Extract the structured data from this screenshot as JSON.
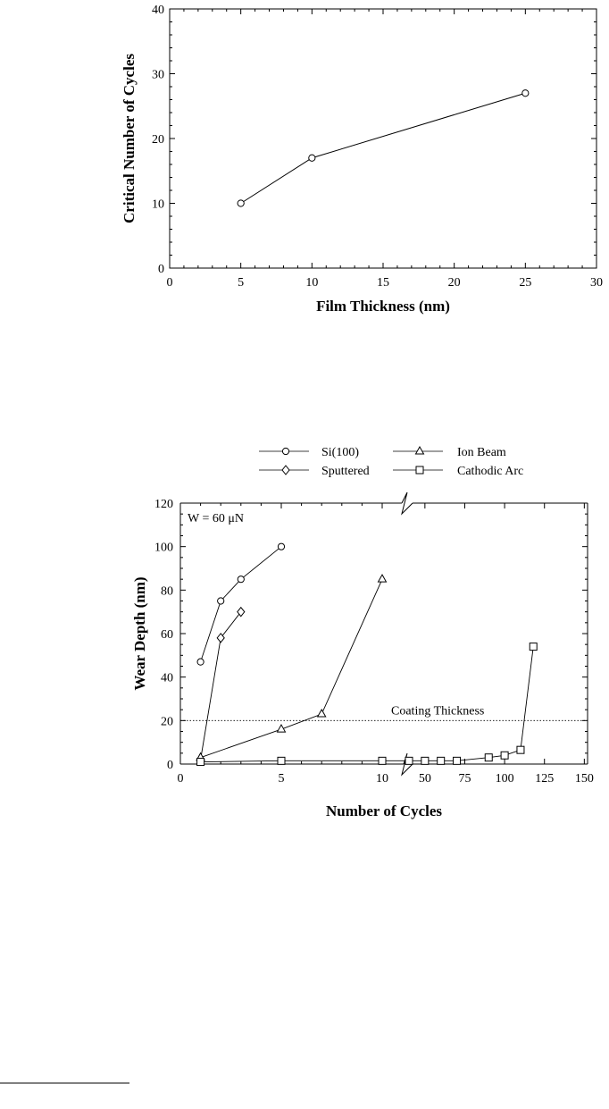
{
  "chart_data": [
    {
      "type": "line",
      "title": "",
      "xlabel": "Film Thickness (nm)",
      "ylabel": "Critical Number of Cycles",
      "xlim": [
        0,
        30
      ],
      "ylim": [
        0,
        40
      ],
      "x_ticks": [
        "0",
        "5",
        "10",
        "15",
        "20",
        "25",
        "30"
      ],
      "y_ticks": [
        "0",
        "10",
        "20",
        "30",
        "40"
      ],
      "grid": false,
      "series": [
        {
          "x": [
            5,
            10,
            25
          ],
          "y": [
            10,
            17,
            27
          ],
          "marker": "circle"
        }
      ]
    },
    {
      "type": "line",
      "title": "",
      "xlabel": "Number of Cycles",
      "ylabel": "Wear Depth (nm)",
      "ylim": [
        0,
        120
      ],
      "x_axis_broken": true,
      "x_ticks_left": [
        "0",
        "5",
        "10"
      ],
      "x_ticks_right": [
        "50",
        "75",
        "100",
        "125",
        "150"
      ],
      "y_ticks": [
        "0",
        "20",
        "40",
        "60",
        "80",
        "100",
        "120"
      ],
      "grid": false,
      "legend_placement": "top",
      "annotation": "W = 60 μN",
      "reference_line": {
        "label": "Coating Thickness",
        "y": 20,
        "style": "dotted"
      },
      "series": [
        {
          "name": "Si(100)",
          "marker": "circle",
          "x": [
            1,
            2,
            3,
            5
          ],
          "y": [
            47,
            75,
            85,
            100
          ]
        },
        {
          "name": "Sputtered",
          "marker": "diamond",
          "x": [
            1,
            2,
            3
          ],
          "y": [
            2,
            58,
            70
          ]
        },
        {
          "name": "Ion Beam",
          "marker": "triangle",
          "x": [
            1,
            5,
            7,
            10
          ],
          "y": [
            3,
            16,
            23,
            85
          ]
        },
        {
          "name": "Cathodic Arc",
          "marker": "square",
          "x": [
            1,
            5,
            10,
            40,
            50,
            60,
            70,
            90,
            100,
            110,
            118
          ],
          "y": [
            1,
            1.5,
            1.5,
            1.5,
            1.5,
            1.5,
            1.5,
            3,
            4,
            6.5,
            54
          ]
        }
      ]
    }
  ]
}
